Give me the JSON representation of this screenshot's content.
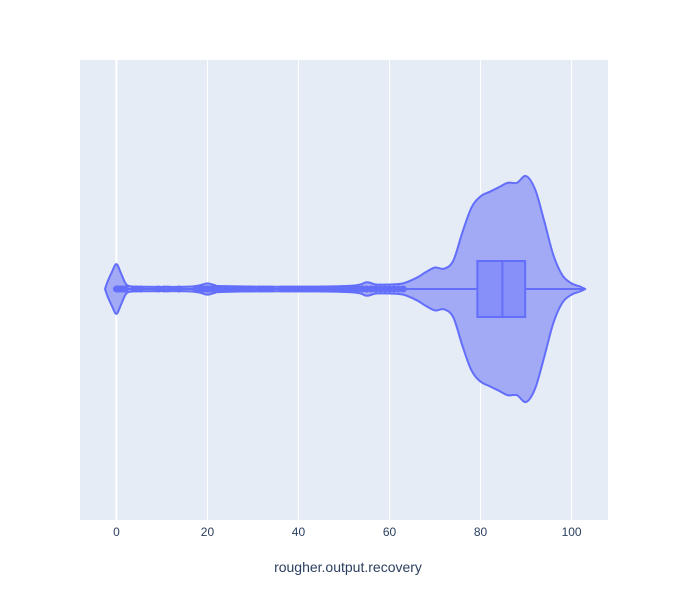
{
  "chart_data": {
    "type": "violin",
    "orientation": "horizontal",
    "title": "",
    "xlabel": "rougher.output.recovery",
    "ylabel": "",
    "xlim": [
      -8,
      108
    ],
    "xticks": [
      0,
      20,
      40,
      60,
      80,
      100
    ],
    "grid": true,
    "legend": "none",
    "colors": {
      "plot_background": "#e5ecf6",
      "grid": "#ffffff",
      "violin_fill": "#a2aaf5",
      "violin_line": "#636efa",
      "box_fill": "#8790f8",
      "text": "#2a3f5f"
    },
    "series": [
      {
        "density_profile": [
          [
            -2.5,
            0
          ],
          [
            -2.0,
            0.06
          ],
          [
            -1.0,
            0.15
          ],
          [
            0.0,
            0.22
          ],
          [
            1.0,
            0.14
          ],
          [
            2.0,
            0.05
          ],
          [
            3.0,
            0.025
          ],
          [
            6.0,
            0.02
          ],
          [
            15.0,
            0.02
          ],
          [
            18.0,
            0.03
          ],
          [
            20.0,
            0.05
          ],
          [
            21.5,
            0.035
          ],
          [
            24.0,
            0.025
          ],
          [
            40.0,
            0.02
          ],
          [
            52.0,
            0.03
          ],
          [
            55.0,
            0.06
          ],
          [
            57.0,
            0.04
          ],
          [
            60.0,
            0.04
          ],
          [
            63.0,
            0.05
          ],
          [
            66.0,
            0.1
          ],
          [
            68.0,
            0.15
          ],
          [
            70.0,
            0.19
          ],
          [
            72.0,
            0.18
          ],
          [
            74.0,
            0.25
          ],
          [
            76.0,
            0.5
          ],
          [
            78.0,
            0.72
          ],
          [
            80.0,
            0.82
          ],
          [
            82.0,
            0.86
          ],
          [
            84.0,
            0.9
          ],
          [
            86.0,
            0.94
          ],
          [
            88.0,
            0.94
          ],
          [
            90.0,
            1.0
          ],
          [
            92.0,
            0.88
          ],
          [
            94.0,
            0.6
          ],
          [
            96.0,
            0.3
          ],
          [
            98.0,
            0.12
          ],
          [
            100.0,
            0.05
          ],
          [
            102.0,
            0.02
          ],
          [
            103.0,
            0
          ]
        ],
        "box": {
          "q1": 79.3,
          "median": 84.8,
          "q3": 89.8,
          "whisker_low": 0,
          "whisker_high": 102.8
        },
        "outliers": [
          0.0,
          0.4,
          0.8,
          1.2,
          1.6,
          2.0,
          3.8,
          4.5,
          5.3,
          9.2,
          10.5,
          11.3,
          13.7,
          17.5,
          18.2,
          19.0,
          19.5,
          20.0,
          20.4,
          20.8,
          21.3,
          21.7,
          22.3,
          23.0,
          23.7,
          24.5,
          25.2,
          26.0,
          26.8,
          27.6,
          28.4,
          29.3,
          30.0,
          31.5,
          32.4,
          33.2,
          34.0,
          36.3,
          37.0,
          37.8,
          38.5,
          39.3,
          40.0,
          40.8,
          41.5,
          42.3,
          43.0,
          44.0,
          45.0,
          45.8,
          46.6,
          47.4,
          48.2,
          49.0,
          49.8,
          50.5,
          51.3,
          52.0,
          53.0,
          54.0,
          55.0,
          56.0,
          57.0,
          58.0,
          59.0,
          60.0,
          61.0,
          62.0,
          63.0
        ]
      }
    ]
  }
}
